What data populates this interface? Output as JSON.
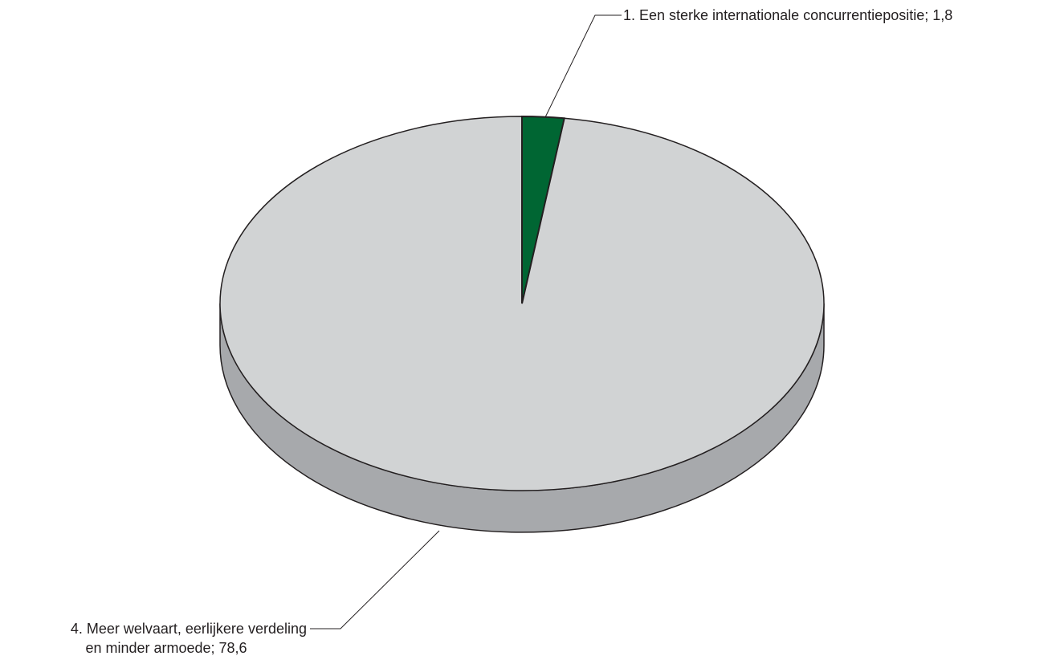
{
  "chart_data": {
    "type": "pie",
    "style": "3d",
    "slices": [
      {
        "label": "1. Een sterke internationale concurrentiepositie; 1,8",
        "value": 1.8,
        "color": "#006633"
      },
      {
        "label_lines": [
          "4. Meer welvaart, eerlijkere verdeling",
          "en minder armoede; 78,6"
        ],
        "value": 78.6,
        "color": "#d1d3d4"
      }
    ],
    "side_color": "#a7a9ac",
    "edge_color": "#231f20"
  }
}
